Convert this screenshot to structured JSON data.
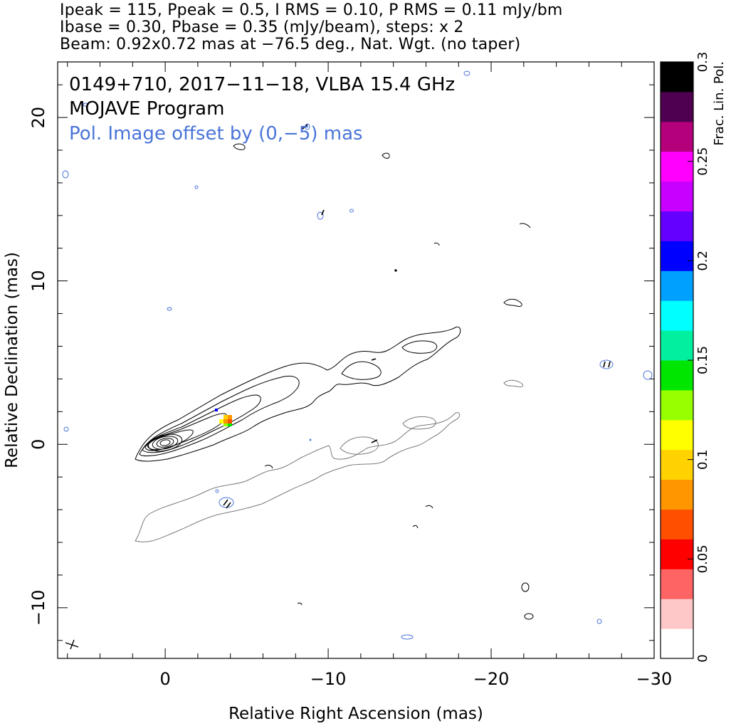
{
  "header": {
    "line1": "Ipeak = 115, Ppeak = 0.5, I RMS = 0.10, P RMS = 0.11 mJy/bm",
    "line2": "Ibase = 0.30, Pbase = 0.35 (mJy/beam), steps: x 2",
    "line3": "Beam: 0.92x0.72 mas at −76.5 deg., Nat. Wgt. (no taper)"
  },
  "annotations": {
    "source": "0149+710, 2017−11−18, VLBA 15.4 GHz",
    "program": "MOJAVE Program",
    "offset_note": "Pol. Image offset by (0,−5) mas",
    "offset_note_color": "#4a74d8"
  },
  "chart_data": {
    "type": "contour",
    "xlabel": "Relative Right Ascension (mas)",
    "ylabel": "Relative Declination (mas)",
    "xlim": [
      6.6,
      -30
    ],
    "ylim": [
      -13.1,
      23.4
    ],
    "x_ticks": [
      {
        "value": 0,
        "label": "0"
      },
      {
        "value": -10,
        "label": "−10"
      },
      {
        "value": -20,
        "label": "−20"
      },
      {
        "value": -30,
        "label": "−30"
      }
    ],
    "y_ticks": [
      {
        "value": -10,
        "label": "−10"
      },
      {
        "value": 0,
        "label": "0"
      },
      {
        "value": 10,
        "label": "10"
      },
      {
        "value": 20,
        "label": "20"
      }
    ],
    "colorbar": {
      "label": "Frac. Lin. Pol.",
      "range": [
        0,
        0.3
      ],
      "ticks": [
        {
          "value": 0,
          "label": "0"
        },
        {
          "value": 0.05,
          "label": "0.05"
        },
        {
          "value": 0.1,
          "label": "0.1"
        },
        {
          "value": 0.15,
          "label": "0.15"
        },
        {
          "value": 0.2,
          "label": "0.2"
        },
        {
          "value": 0.25,
          "label": "0.25"
        },
        {
          "value": 0.3,
          "label": "0.3"
        }
      ],
      "colors": [
        "#ffffff",
        "#ffc8c8",
        "#ff6464",
        "#ff0000",
        "#ff5000",
        "#ff9600",
        "#ffd200",
        "#ffff00",
        "#96ff00",
        "#00e600",
        "#00f0a0",
        "#00ffff",
        "#00a0ff",
        "#0000ff",
        "#6400ff",
        "#c800ff",
        "#ff00ff",
        "#b4007a",
        "#500050",
        "#000000"
      ]
    },
    "total_intensity": {
      "color": "#000000",
      "core": {
        "x": 0,
        "y": 0
      },
      "jet_position_angle_deg": -63,
      "jet_extent_mas": 18.5
    },
    "polarization": {
      "offset": [
        0,
        -5
      ],
      "contour_color": "#666666",
      "fractional_pol_patch": {
        "x": -3.8,
        "y": 1.5,
        "values": [
          0.05,
          0.08,
          0.1,
          0.12,
          0.15
        ]
      }
    },
    "beam": {
      "major_mas": 0.92,
      "minor_mas": 0.72,
      "pa_deg": -76.5
    }
  }
}
